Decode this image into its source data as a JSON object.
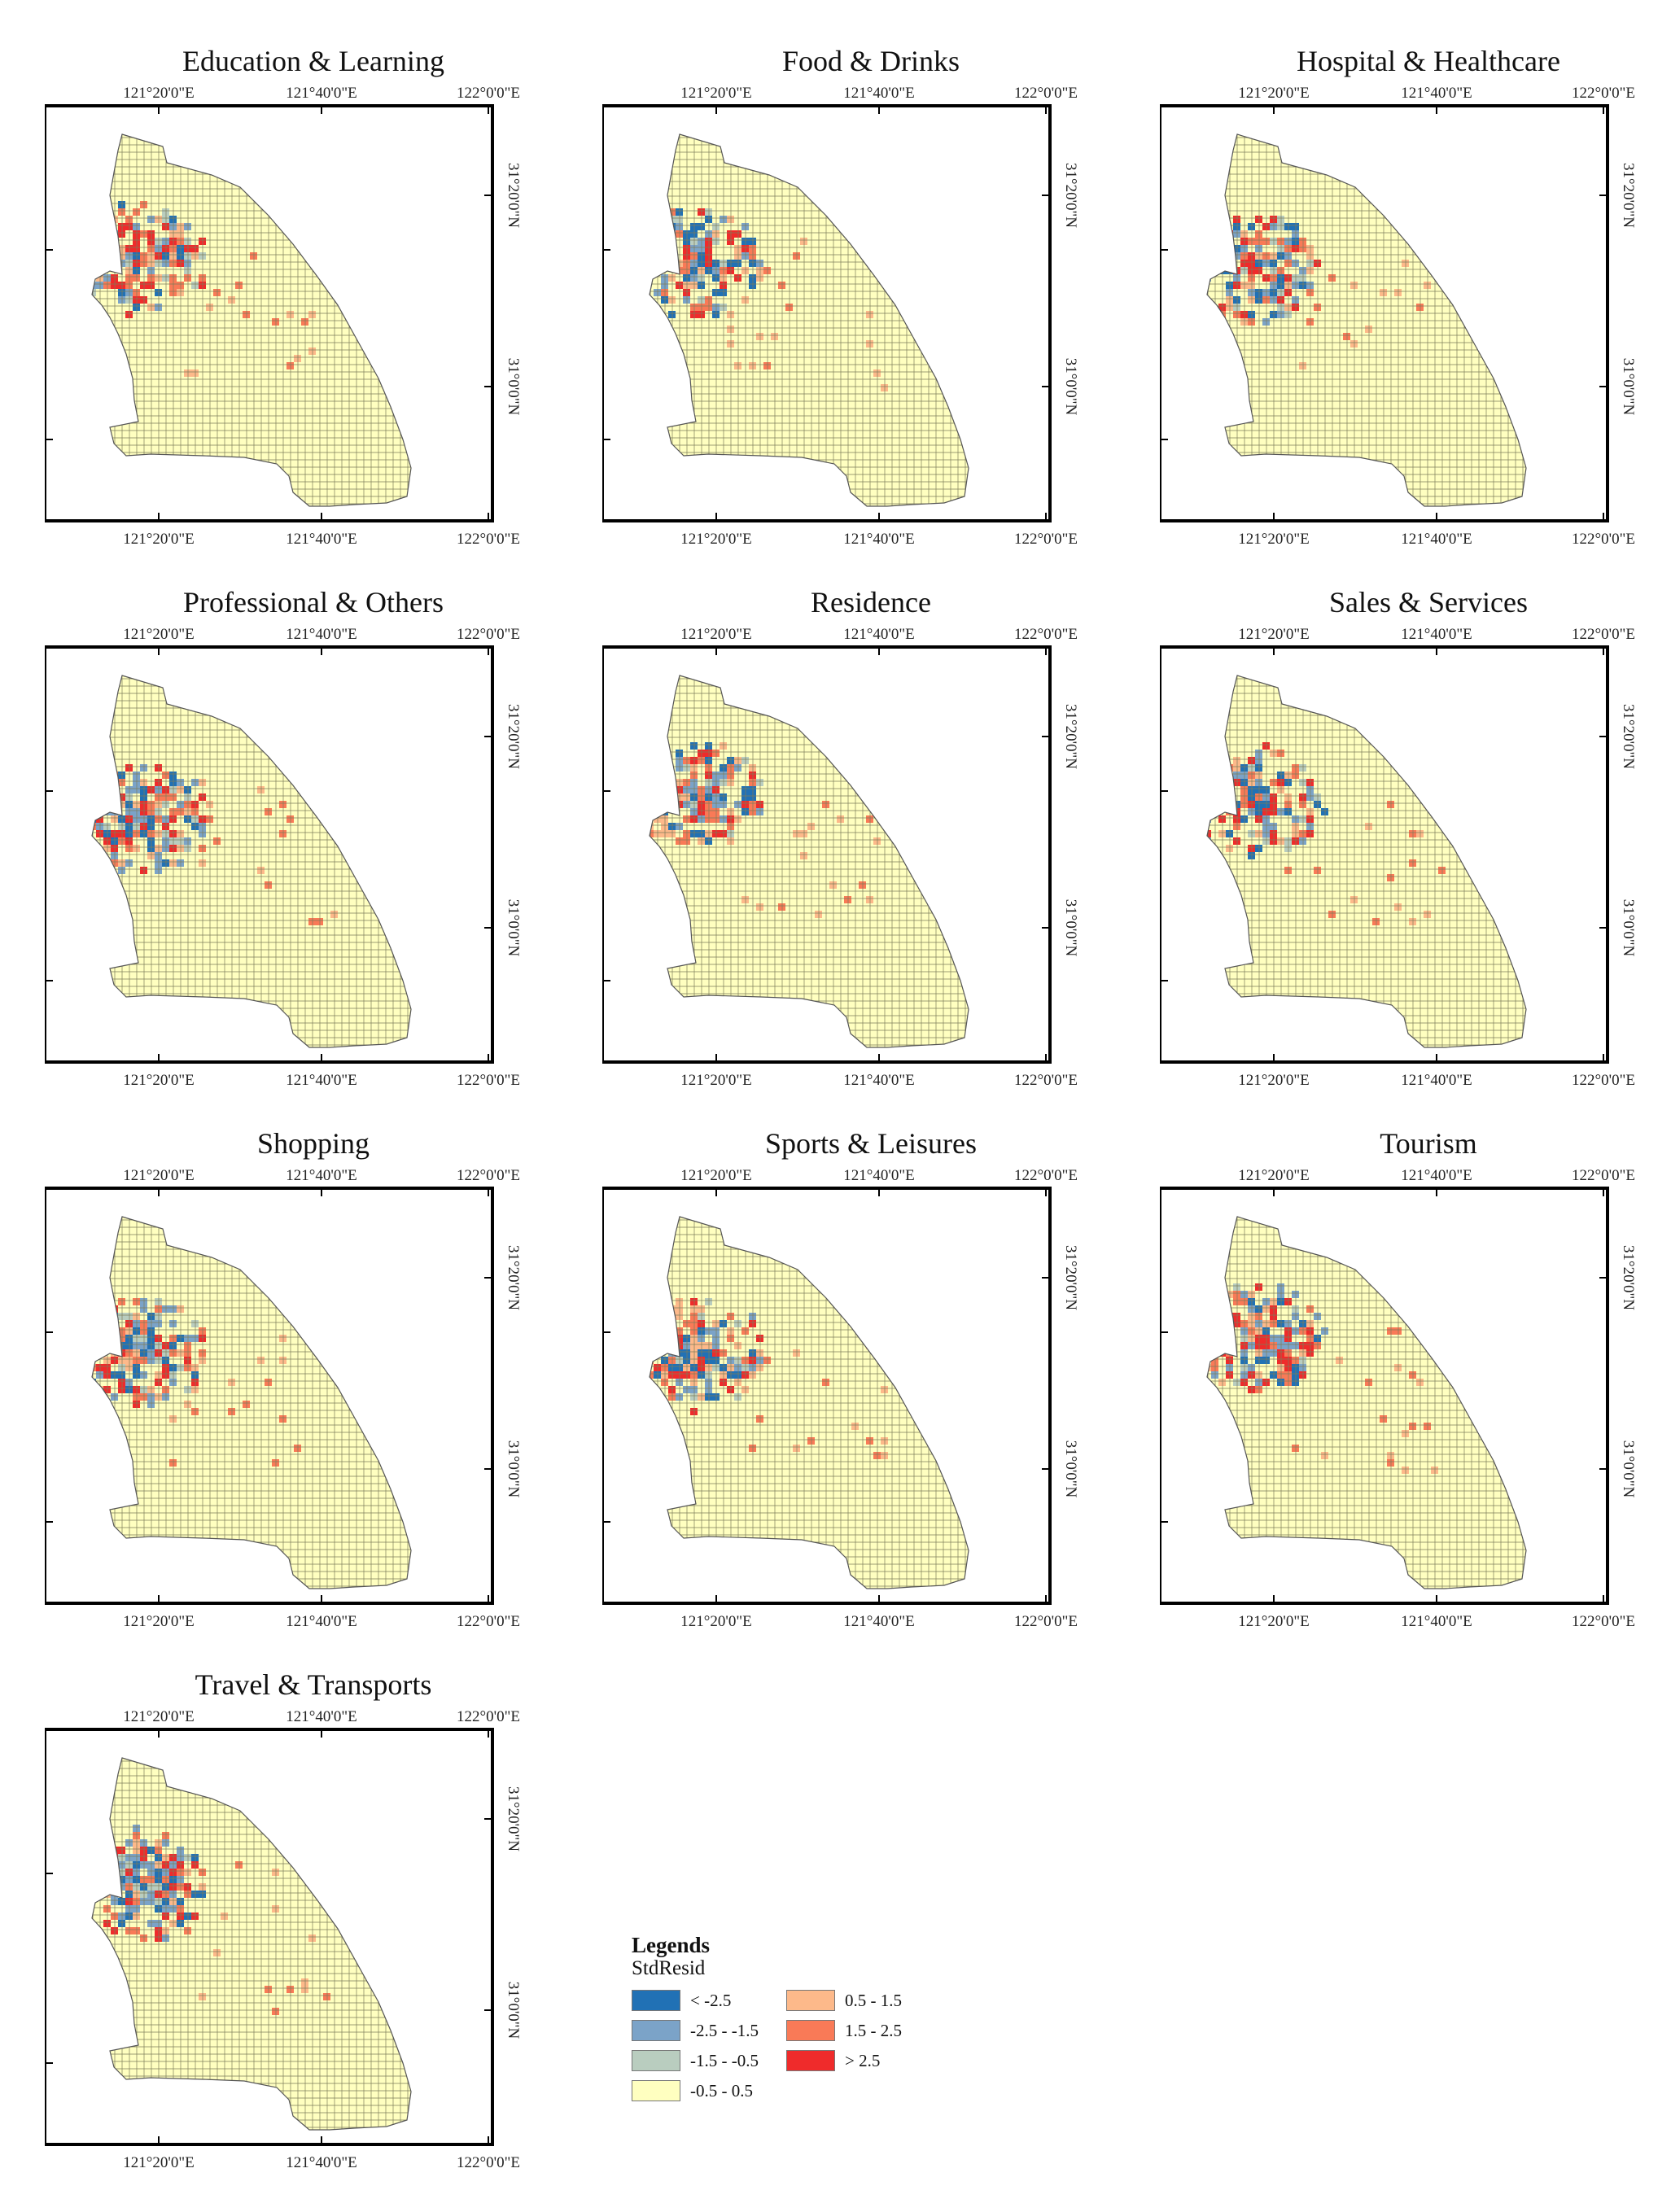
{
  "figure": {
    "panels": [
      {
        "title": "Education & Learning",
        "seed": 11
      },
      {
        "title": "Food & Drinks",
        "seed": 23
      },
      {
        "title": "Hospital & Healthcare",
        "seed": 37
      },
      {
        "title": "Professional & Others",
        "seed": 41
      },
      {
        "title": "Residence",
        "seed": 53
      },
      {
        "title": "Sales & Services",
        "seed": 67
      },
      {
        "title": "Shopping",
        "seed": 71
      },
      {
        "title": "Sports & Leisures",
        "seed": 83
      },
      {
        "title": "Tourism",
        "seed": 97
      },
      {
        "title": "Travel & Transports",
        "seed": 101
      }
    ],
    "axis_labels": {
      "lon": [
        "121°20'0\"E",
        "121°40'0\"E",
        "122°0'0\"E"
      ],
      "lat": [
        "31°20'0\"N",
        "31°0'0\"N"
      ]
    },
    "legend": {
      "title": "Legends",
      "field": "StdResid",
      "classes": [
        {
          "label": "< -2.5",
          "color": "#2171b5"
        },
        {
          "label": "-2.5 - -1.5",
          "color": "#7ba3c8"
        },
        {
          "label": "-1.5 - -0.5",
          "color": "#b9cdbf"
        },
        {
          "label": "-0.5 - 0.5",
          "color": "#ffffc0"
        },
        {
          "label": "0.5 - 1.5",
          "color": "#fdb98a"
        },
        {
          "label": "1.5 - 2.5",
          "color": "#f97a57"
        },
        {
          "label": "> 2.5",
          "color": "#ef2b2b"
        }
      ]
    },
    "grid_line_color": "#7d7d5a",
    "outline_color": "#555555"
  }
}
